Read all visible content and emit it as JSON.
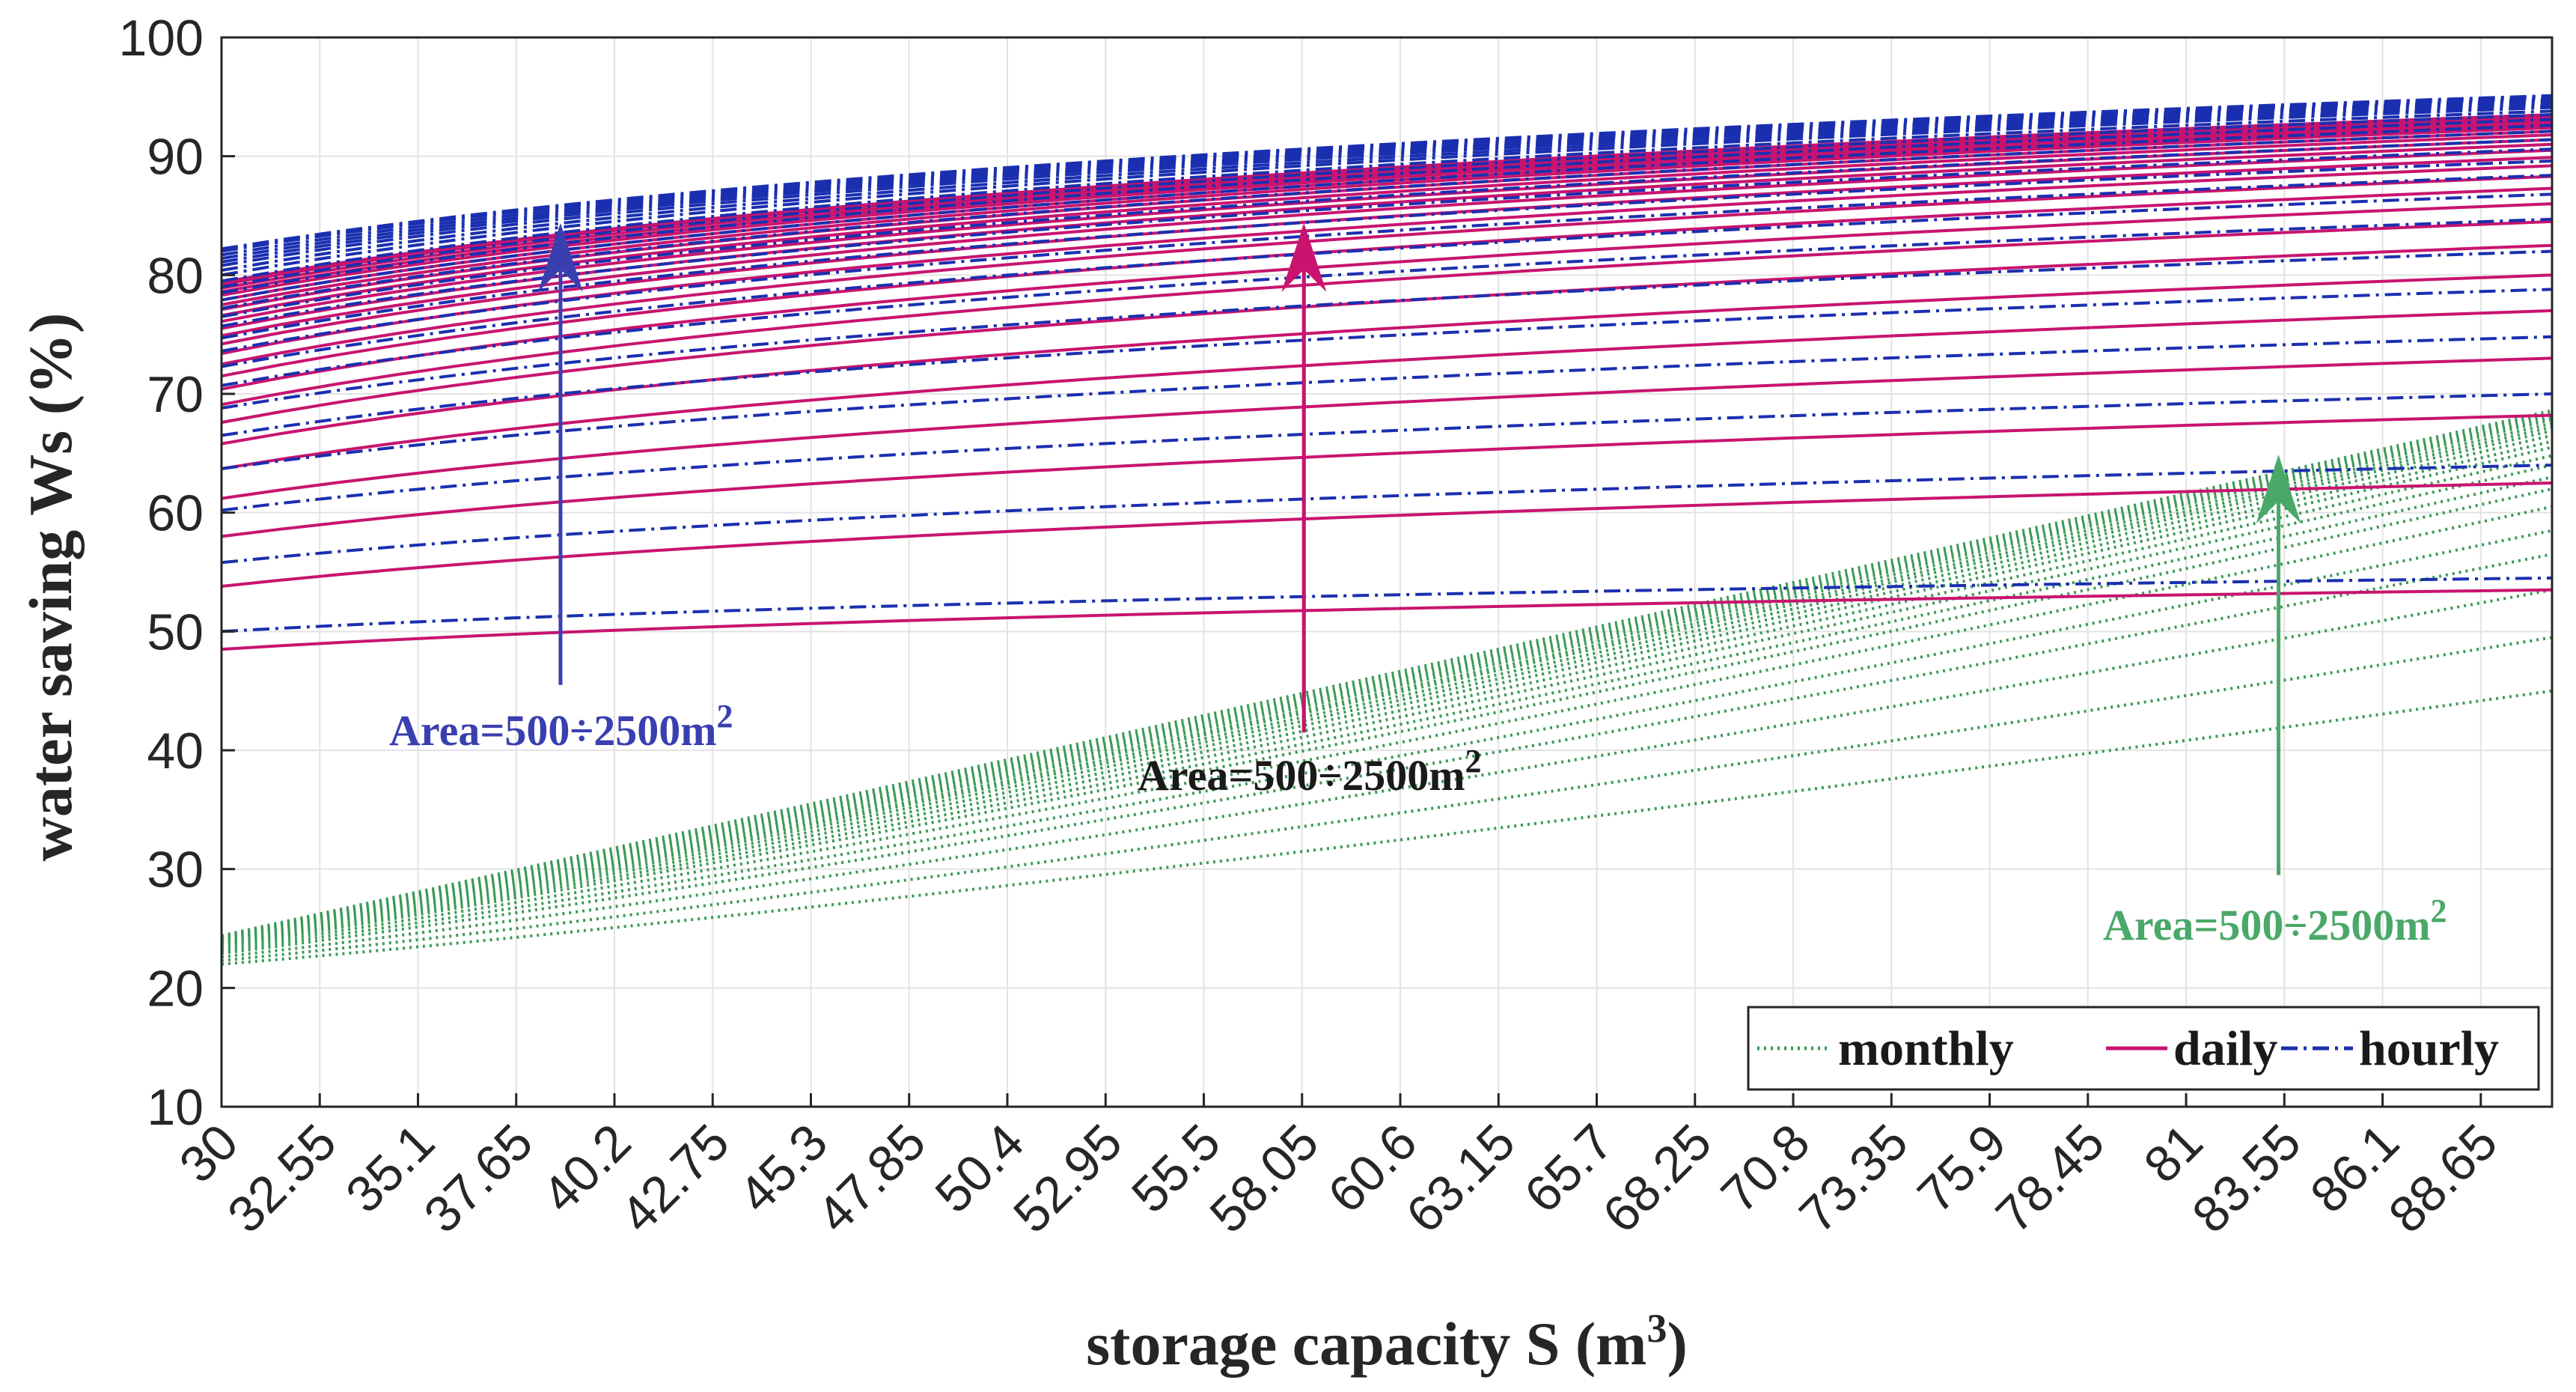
{
  "chart_data": {
    "type": "line",
    "title": "",
    "xlabel": "storage capacity S (m",
    "xlabel_superscript": "3",
    "xlabel_close": ")",
    "ylabel": "water saving Ws (%)",
    "xlim": [
      30,
      90.5
    ],
    "ylim": [
      10,
      100
    ],
    "x_ticks": [
      "30",
      "32.55",
      "35.1",
      "37.65",
      "40.2",
      "42.75",
      "45.3",
      "47.85",
      "50.4",
      "52.95",
      "55.5",
      "58.05",
      "60.6",
      "63.15",
      "65.7",
      "68.25",
      "70.8",
      "73.35",
      "75.9",
      "78.45",
      "81",
      "83.55",
      "86.1",
      "88.65"
    ],
    "y_ticks": [
      "10",
      "20",
      "30",
      "40",
      "50",
      "60",
      "70",
      "80",
      "90",
      "100"
    ],
    "grid": true,
    "legend_position": "bottom-right",
    "series_groups": [
      {
        "name": "monthly",
        "color": "#3a9a55",
        "style": "dotted",
        "start_values": [
          22.0,
          22.3,
          22.6,
          22.9,
          23.1,
          23.3,
          23.5,
          23.6,
          23.7,
          23.8,
          23.9,
          24.0,
          24.0,
          24.1,
          24.1,
          24.2,
          24.2,
          24.3,
          24.3,
          24.3,
          24.4
        ],
        "end_values": [
          45.0,
          49.5,
          53.5,
          56.5,
          58.5,
          60.5,
          62.0,
          63.0,
          64.0,
          64.8,
          65.5,
          66.0,
          66.5,
          66.9,
          67.2,
          67.5,
          67.8,
          68.0,
          68.2,
          68.4,
          68.6
        ]
      },
      {
        "name": "daily",
        "color": "#c8146e",
        "style": "solid",
        "start_values": [
          48.5,
          53.8,
          58.0,
          61.2,
          63.7,
          65.8,
          67.6,
          69.1,
          70.4,
          71.5,
          72.5,
          73.4,
          74.2,
          74.9,
          75.5,
          76.1,
          76.6,
          77.1,
          77.5,
          77.9,
          78.3,
          78.6,
          78.9,
          79.2,
          79.4
        ],
        "end_values": [
          53.5,
          62.5,
          68.2,
          73.0,
          77.0,
          80.0,
          82.5,
          84.5,
          86.0,
          87.3,
          88.3,
          89.2,
          89.9,
          90.5,
          91.0,
          91.4,
          91.8,
          92.1,
          92.4,
          92.6,
          92.8,
          93.0,
          93.2,
          93.4,
          93.5
        ]
      },
      {
        "name": "hourly",
        "color": "#1a2fb0",
        "style": "dash-dot",
        "start_values": [
          50.0,
          55.8,
          60.2,
          63.7,
          66.5,
          68.8,
          70.7,
          72.3,
          73.6,
          74.7,
          75.7,
          76.5,
          77.2,
          77.9,
          78.5,
          79.0,
          79.5,
          80.0,
          80.4,
          80.8,
          81.1,
          81.4,
          81.7,
          82.0,
          82.2
        ],
        "end_values": [
          54.5,
          64.0,
          70.0,
          74.8,
          78.8,
          82.0,
          84.7,
          86.8,
          88.4,
          89.6,
          90.6,
          91.4,
          92.1,
          92.6,
          93.1,
          93.5,
          93.8,
          94.1,
          94.3,
          94.5,
          94.7,
          94.8,
          94.9,
          95.0,
          95.1
        ]
      }
    ],
    "annotations": [
      {
        "text": "Area=500÷2500m",
        "superscript": "2",
        "color": "#3a3fb0",
        "arrow_x": 38.8,
        "arrow_from_y": 45.5,
        "arrow_to_y": 84.0
      },
      {
        "text": "Area=500÷2500m",
        "superscript": "2",
        "color": "#1a1a1a",
        "arrow_color": "#c8146e",
        "arrow_x": 58.1,
        "arrow_from_y": 41.5,
        "arrow_to_y": 84.0
      },
      {
        "text": "Area=500÷2500m",
        "superscript": "2",
        "color": "#4aa868",
        "arrow_x": 83.4,
        "arrow_from_y": 29.5,
        "arrow_to_y": 64.5
      }
    ]
  }
}
